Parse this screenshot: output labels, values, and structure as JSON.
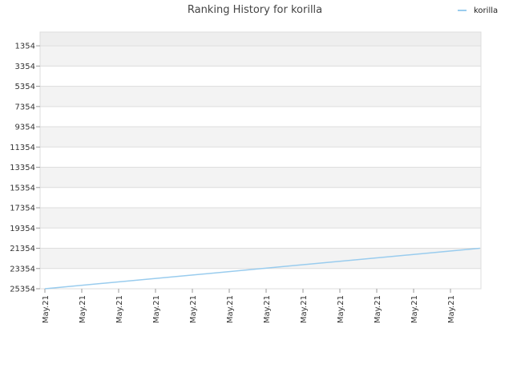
{
  "chart_data": {
    "type": "line",
    "title": "Ranking History for korilla",
    "xlabel": "",
    "ylabel": "",
    "y_axis_inverted": true,
    "ylim": [
      25354,
      0
    ],
    "y_ticks": [
      "1354",
      "3354",
      "5354",
      "7354",
      "9354",
      "11354",
      "13354",
      "15354",
      "17354",
      "19354",
      "21354",
      "23354",
      "25354"
    ],
    "x_ticks": [
      "May.21",
      "May.21",
      "May.21",
      "May.21",
      "May.21",
      "May.21",
      "May.21",
      "May.21",
      "May.21",
      "May.21",
      "May.21",
      "May.21"
    ],
    "grid": true,
    "legend_position": "top-right",
    "series": [
      {
        "name": "korilla",
        "color": "#99ccee",
        "x": [
          0,
          11.8
        ],
        "y": [
          25354,
          21350
        ]
      }
    ]
  }
}
